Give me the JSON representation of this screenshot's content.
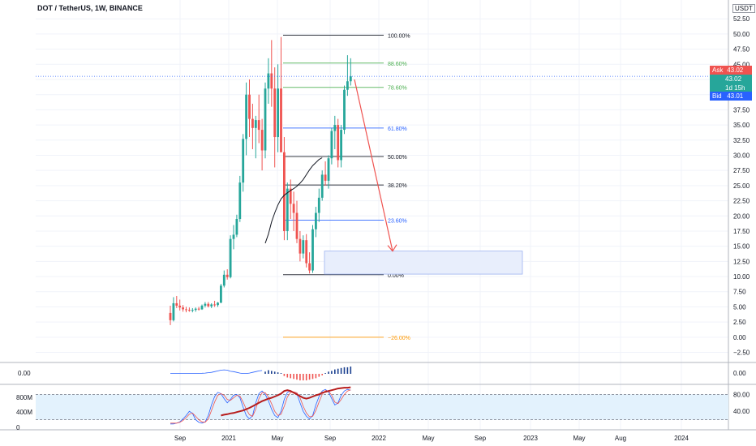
{
  "header": {
    "title": "DOT / TetherUS, 1W, BINANCE",
    "currency_button": "USDT"
  },
  "price_badges": {
    "ask_label": "Ask",
    "ask_value": "43.02",
    "last_value": "43.02",
    "countdown": "1d 15h",
    "bid_label": "Bid",
    "bid_value": "43.01"
  },
  "colors": {
    "up": "#26a69a",
    "down": "#ef5350",
    "ask": "#ef5350",
    "bid": "#2962ff",
    "last": "#26a69a",
    "fib_black": "#131722",
    "fib_green": "#4caf50",
    "fib_blue": "#2962ff",
    "fib_orange": "#ff9800",
    "arrow": "#ef5350",
    "ma": "#131722",
    "stoch_band": "#e3f2fd"
  },
  "chart_data": {
    "type": "candlestick",
    "title": "DOT / TetherUS, 1W, BINANCE",
    "y_axis": {
      "ticks": [
        "52.50",
        "50.00",
        "47.50",
        "45.00",
        "42.50",
        "40.00",
        "37.50",
        "35.00",
        "32.50",
        "30.00",
        "27.50",
        "25.00",
        "22.50",
        "20.00",
        "17.50",
        "15.00",
        "12.50",
        "10.00",
        "7.50",
        "5.00",
        "2.50",
        "0.00",
        "−2.50"
      ],
      "range": [
        -3.5,
        54
      ]
    },
    "x_axis": {
      "ticks": [
        "Sep",
        "2021",
        "May",
        "Sep",
        "2022",
        "May",
        "Sep",
        "2023",
        "May",
        "Aug",
        "2024"
      ]
    },
    "current_price": 43.02,
    "candles_ohlc": [
      [
        4.0,
        5.2,
        2.0,
        2.8
      ],
      [
        2.8,
        6.6,
        2.6,
        5.6
      ],
      [
        5.6,
        6.8,
        4.8,
        5.2
      ],
      [
        5.2,
        6.2,
        4.4,
        4.9
      ],
      [
        4.9,
        5.3,
        4.2,
        4.6
      ],
      [
        4.6,
        5.0,
        4.1,
        4.5
      ],
      [
        4.5,
        4.9,
        4.2,
        4.4
      ],
      [
        4.4,
        4.8,
        4.1,
        4.5
      ],
      [
        4.5,
        4.9,
        4.2,
        4.7
      ],
      [
        4.7,
        5.0,
        4.4,
        4.6
      ],
      [
        4.6,
        5.4,
        4.5,
        5.2
      ],
      [
        5.2,
        5.8,
        4.9,
        5.5
      ],
      [
        5.5,
        5.8,
        4.9,
        5.1
      ],
      [
        5.1,
        5.6,
        4.8,
        5.4
      ],
      [
        5.4,
        6.0,
        5.0,
        5.3
      ],
      [
        5.3,
        5.8,
        5.0,
        5.7
      ],
      [
        5.7,
        8.8,
        5.6,
        8.5
      ],
      [
        8.5,
        11.0,
        8.2,
        10.3
      ],
      [
        10.3,
        11.2,
        9.5,
        9.9
      ],
      [
        9.9,
        16.8,
        9.7,
        16.2
      ],
      [
        16.2,
        18.5,
        14.5,
        16.9
      ],
      [
        16.9,
        20.2,
        16.5,
        19.5
      ],
      [
        19.5,
        26.6,
        19.0,
        25.5
      ],
      [
        25.5,
        33.5,
        24.0,
        32.7
      ],
      [
        32.7,
        42.0,
        30.0,
        40.0
      ],
      [
        40.0,
        42.5,
        33.0,
        36.0
      ],
      [
        36.0,
        38.5,
        31.0,
        34.5
      ],
      [
        34.5,
        36.5,
        29.5,
        35.8
      ],
      [
        35.8,
        40.0,
        32.0,
        34.2
      ],
      [
        34.2,
        36.0,
        27.5,
        30.8
      ],
      [
        30.8,
        42.0,
        29.5,
        41.0
      ],
      [
        41.0,
        46.0,
        38.5,
        43.5
      ],
      [
        43.5,
        49.0,
        38.0,
        41.0
      ],
      [
        41.0,
        44.5,
        28.0,
        33.0
      ],
      [
        33.0,
        45.0,
        30.5,
        41.0
      ],
      [
        41.0,
        49.5,
        31.0,
        30.5
      ],
      [
        30.5,
        33.0,
        16.0,
        17.5
      ],
      [
        17.5,
        25.5,
        16.0,
        24.5
      ],
      [
        24.5,
        26.0,
        19.5,
        22.0
      ],
      [
        22.0,
        24.0,
        17.5,
        20.5
      ],
      [
        20.5,
        22.5,
        15.5,
        16.2
      ],
      [
        16.2,
        17.5,
        12.5,
        13.8
      ],
      [
        13.8,
        16.8,
        13.0,
        16.0
      ],
      [
        16.0,
        17.0,
        11.5,
        12.2
      ],
      [
        12.2,
        14.0,
        10.5,
        11.0
      ],
      [
        11.0,
        18.5,
        10.6,
        17.8
      ],
      [
        17.8,
        21.5,
        16.5,
        20.5
      ],
      [
        20.5,
        24.5,
        19.0,
        23.0
      ],
      [
        23.0,
        27.5,
        22.5,
        26.8
      ],
      [
        26.8,
        29.0,
        25.0,
        25.8
      ],
      [
        25.8,
        30.0,
        24.5,
        29.5
      ],
      [
        29.5,
        34.5,
        28.5,
        34.0
      ],
      [
        34.0,
        36.5,
        31.0,
        35.0
      ],
      [
        35.0,
        36.0,
        28.0,
        29.2
      ],
      [
        29.2,
        35.0,
        28.0,
        34.2
      ],
      [
        34.2,
        41.5,
        33.5,
        40.8
      ],
      [
        40.8,
        46.5,
        39.8,
        42.2
      ],
      [
        42.2,
        46.0,
        41.5,
        43.02
      ]
    ],
    "moving_average": [
      [
        30,
        15.5
      ],
      [
        31,
        17.0
      ],
      [
        32,
        19.0
      ],
      [
        33,
        20.5
      ],
      [
        34,
        21.8
      ],
      [
        35,
        22.8
      ],
      [
        36,
        23.4
      ],
      [
        37,
        23.8
      ],
      [
        38,
        24.2
      ],
      [
        39,
        24.5
      ],
      [
        40,
        24.9
      ],
      [
        41,
        25.4
      ],
      [
        42,
        26.0
      ],
      [
        43,
        26.8
      ],
      [
        44,
        27.6
      ],
      [
        45,
        28.3
      ],
      [
        46,
        28.8
      ],
      [
        47,
        29.3
      ],
      [
        48,
        29.6
      ]
    ],
    "fibonacci": [
      {
        "label": "100.00%",
        "price": 49.8,
        "color": "black"
      },
      {
        "label": "88.60%",
        "price": 45.2,
        "color": "green"
      },
      {
        "label": "78.60%",
        "price": 41.2,
        "color": "green"
      },
      {
        "label": "61.80%",
        "price": 34.5,
        "color": "blue"
      },
      {
        "label": "50.00%",
        "price": 29.8,
        "color": "black"
      },
      {
        "label": "38.20%",
        "price": 25.1,
        "color": "black"
      },
      {
        "label": "23.60%",
        "price": 19.3,
        "color": "blue"
      },
      {
        "label": "0.00%",
        "price": 10.3,
        "color": "black"
      },
      {
        "label": "−26.00%",
        "price": 0.0,
        "color": "orange"
      }
    ],
    "projection_arrow": {
      "from_price": 42.5,
      "to_price": 14.2
    },
    "target_zone": {
      "price_top": 14.2,
      "price_bottom": 10.4
    },
    "macd": {
      "left_label": "0.00",
      "right_label": "0.00",
      "histogram": [
        0,
        0,
        0,
        0,
        0,
        0,
        0,
        0,
        0,
        0,
        0,
        0,
        0,
        0,
        0,
        0,
        0,
        0,
        0,
        0,
        0,
        0,
        0,
        0,
        0,
        0,
        0,
        0,
        0,
        0,
        0.3,
        0.5,
        0.4,
        0.3,
        0.2,
        0.1,
        -0.3,
        -0.5,
        -0.6,
        -0.7,
        -0.8,
        -0.9,
        -0.9,
        -0.9,
        -0.8,
        -0.7,
        -0.6,
        -0.4,
        -0.2,
        0.1,
        0.3,
        0.4,
        0.6,
        0.7,
        0.8,
        0.9,
        0.9,
        1.0
      ],
      "line": [
        0.05,
        0.05,
        0.05,
        0.05,
        0.05,
        0.05,
        0.05,
        0.06,
        0.06,
        0.07,
        0.08,
        0.1,
        0.15,
        0.2,
        0.3,
        0.4,
        0.5,
        0.55,
        0.5,
        0.35,
        0.3,
        0.2,
        0.1,
        0.05,
        0.05,
        0.1,
        0.2,
        0.3,
        0.4,
        0.45
      ]
    },
    "stoch": {
      "left_ticks": [
        "800M",
        "400M",
        "0"
      ],
      "right_ticks": [
        "80.00",
        "40.00"
      ],
      "band": [
        20,
        80
      ],
      "k": [
        10,
        10,
        12,
        15,
        22,
        30,
        40,
        35,
        20,
        14,
        12,
        15,
        30,
        55,
        75,
        85,
        82,
        70,
        60,
        68,
        78,
        80,
        72,
        50,
        30,
        22,
        30,
        60,
        82,
        88,
        80,
        65,
        45,
        30,
        25,
        40,
        68,
        85,
        88,
        85,
        82,
        60,
        40,
        28,
        22,
        30,
        55,
        75,
        88,
        92,
        86,
        70,
        55,
        60,
        78,
        88,
        92,
        90
      ],
      "d": [
        12,
        12,
        12,
        14,
        18,
        25,
        33,
        36,
        28,
        20,
        15,
        14,
        22,
        42,
        62,
        78,
        82,
        78,
        68,
        66,
        72,
        78,
        76,
        62,
        45,
        32,
        28,
        45,
        70,
        84,
        84,
        74,
        58,
        40,
        30,
        33,
        52,
        74,
        85,
        86,
        84,
        72,
        52,
        36,
        27,
        28,
        42,
        62,
        80,
        89,
        88,
        78,
        62,
        58,
        68,
        80,
        88,
        91
      ],
      "volume_like": [
        30,
        32,
        33,
        35,
        36,
        38,
        40,
        42,
        45,
        48,
        52,
        56,
        60,
        64,
        67,
        70,
        72,
        75,
        78,
        82,
        88,
        90,
        88,
        84,
        80,
        76,
        72,
        70,
        72,
        75,
        78,
        80,
        84,
        86,
        88,
        90,
        92,
        94,
        95,
        96,
        96,
        97
      ]
    }
  }
}
